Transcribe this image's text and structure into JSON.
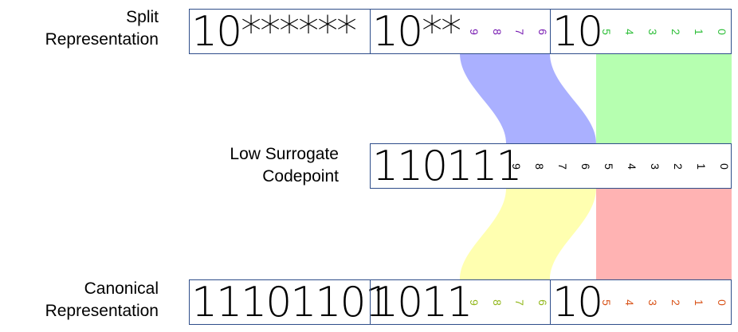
{
  "labels": {
    "split": [
      "Split",
      "Representation"
    ],
    "low": [
      "Low Surrogate",
      "Codepoint"
    ],
    "canonical": [
      "Canonical",
      "Representation"
    ]
  },
  "split": {
    "box1": "10******",
    "box2": "10**",
    "box2_bits": [
      "9",
      "8",
      "7",
      "6"
    ],
    "box3": "10",
    "box3_bits": [
      "5",
      "4",
      "3",
      "2",
      "1",
      "0"
    ]
  },
  "low_surrogate": {
    "prefix": "110111",
    "bits": [
      "9",
      "8",
      "7",
      "6",
      "5",
      "4",
      "3",
      "2",
      "1",
      "0"
    ]
  },
  "canonical": {
    "box1": "11101101",
    "box2": "1011",
    "box2_bits": [
      "9",
      "8",
      "7",
      "6"
    ],
    "box3": "10",
    "box3_bits": [
      "5",
      "4",
      "3",
      "2",
      "1",
      "0"
    ]
  },
  "colors": {
    "border": "#2e4d8a",
    "split_high_bits": "#7a1fb3",
    "split_low_bits": "#2fbf3a",
    "canonical_high_bits": "#93b81e",
    "canonical_low_bits": "#d9541a",
    "low_surrogate_bits": "#000000",
    "flow_blue": "#aab0ff",
    "flow_green": "#b6ffb0",
    "flow_yellow": "#ffffb0",
    "flow_red": "#ffb3b3"
  }
}
